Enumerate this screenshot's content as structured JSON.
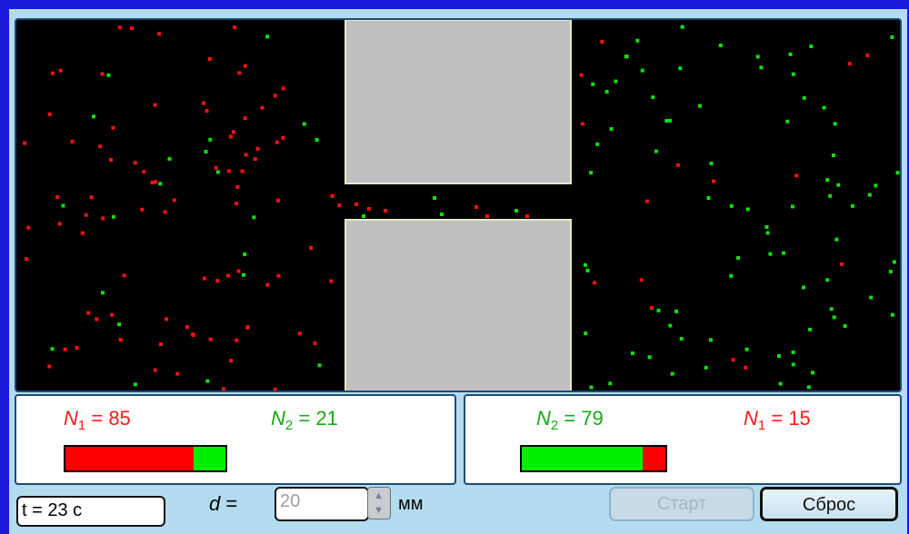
{
  "colors": {
    "red_particle": "#ff1010",
    "green_particle": "#10e010",
    "wall": "#c0c0c0"
  },
  "left_panel": {
    "n1": {
      "symbol": "N",
      "sub": "1",
      "text": "= 85",
      "value": 85
    },
    "n2": {
      "symbol": "N",
      "sub": "2",
      "text": "= 21",
      "value": 21
    },
    "bar": {
      "red_fraction": 0.8,
      "green_fraction": 0.2
    }
  },
  "right_panel": {
    "n2": {
      "symbol": "N",
      "sub": "2",
      "text": "= 79",
      "value": 79
    },
    "n1": {
      "symbol": "N",
      "sub": "1",
      "text": "= 15",
      "value": 15
    },
    "bar": {
      "green_fraction": 0.84,
      "red_fraction": 0.16
    }
  },
  "time_field": {
    "value": "t = 23 c"
  },
  "d_label": {
    "var": "d",
    "eq": "="
  },
  "d_field": {
    "value": "20"
  },
  "unit": "мм",
  "buttons": {
    "start": "Старт",
    "reset": "Сброс"
  }
}
